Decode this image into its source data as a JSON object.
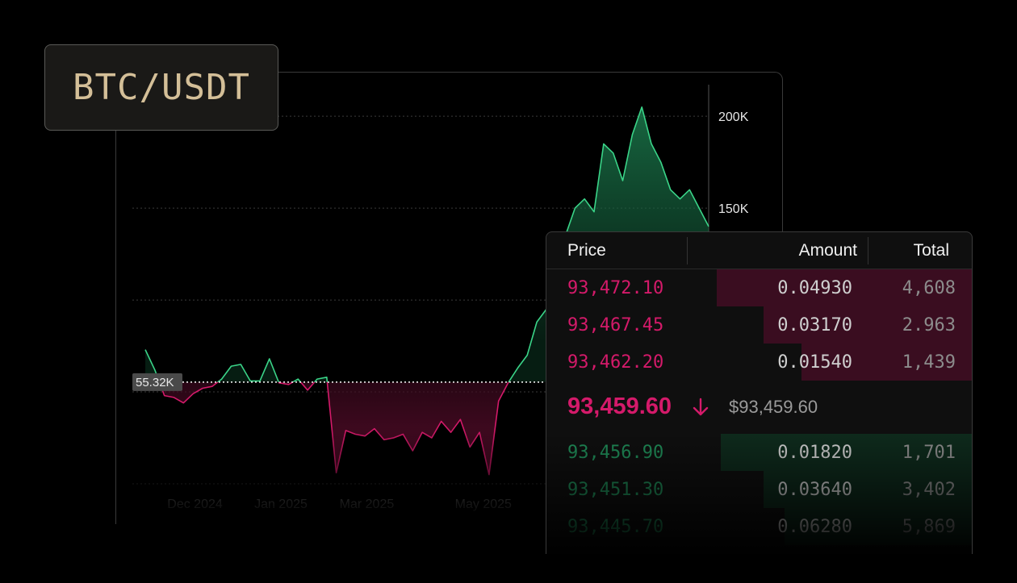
{
  "pair": {
    "label": "BTC/USDT"
  },
  "chart_data": {
    "type": "area",
    "baseline": 55320,
    "baseline_label": "55.32K",
    "ylim": [
      0,
      215000
    ],
    "y_ticks": [
      {
        "value": 200000,
        "label": "200K"
      },
      {
        "value": 150000,
        "label": "150K"
      }
    ],
    "x_ticks": [
      {
        "value": "2024-12-01",
        "label": "Dec 2024"
      },
      {
        "value": "2025-01-15",
        "label": "Jan 2025"
      },
      {
        "value": "2025-03-01",
        "label": "Mar 2025"
      },
      {
        "value": "2025-05-01",
        "label": "May 2025"
      }
    ],
    "colors": {
      "above": "#3ad488",
      "below": "#d41a6a"
    },
    "series": [
      {
        "x": [
          "2024-11-05",
          "2024-11-10",
          "2024-11-15",
          "2024-11-20",
          "2024-11-25",
          "2024-11-30",
          "2024-12-05",
          "2024-12-10",
          "2024-12-15",
          "2024-12-20",
          "2024-12-25",
          "2024-12-30",
          "2025-01-04",
          "2025-01-09",
          "2025-01-14",
          "2025-01-19",
          "2025-01-24",
          "2025-01-29",
          "2025-02-03",
          "2025-02-08",
          "2025-02-13",
          "2025-02-18",
          "2025-02-23",
          "2025-02-28",
          "2025-03-05",
          "2025-03-10",
          "2025-03-15",
          "2025-03-20",
          "2025-03-25",
          "2025-03-30",
          "2025-04-04",
          "2025-04-09",
          "2025-04-14",
          "2025-04-19",
          "2025-04-24",
          "2025-04-29",
          "2025-05-04",
          "2025-05-09",
          "2025-05-14",
          "2025-05-19",
          "2025-05-24",
          "2025-05-29",
          "2025-06-03",
          "2025-06-08",
          "2025-06-13",
          "2025-06-18",
          "2025-06-23",
          "2025-06-28",
          "2025-07-03",
          "2025-07-08",
          "2025-07-13",
          "2025-07-18",
          "2025-07-23",
          "2025-07-28",
          "2025-08-02",
          "2025-08-07",
          "2025-08-12",
          "2025-08-17",
          "2025-08-22",
          "2025-08-27"
        ],
        "y": [
          73000,
          62000,
          48000,
          47000,
          44000,
          49000,
          52000,
          53000,
          57000,
          64000,
          65000,
          56000,
          56000,
          68000,
          55000,
          54000,
          57000,
          51000,
          57000,
          58000,
          6000,
          29000,
          27000,
          26000,
          30000,
          24000,
          25000,
          27000,
          18000,
          28000,
          25000,
          34000,
          28000,
          35000,
          20000,
          28000,
          5000,
          45000,
          55000,
          63000,
          70000,
          88000,
          95000,
          110000,
          135000,
          150000,
          155000,
          148000,
          185000,
          180000,
          165000,
          190000,
          205000,
          185000,
          175000,
          160000,
          155000,
          160000,
          150000,
          140000
        ]
      }
    ]
  },
  "orderbook": {
    "headers": {
      "price": "Price",
      "amount": "Amount",
      "total": "Total"
    },
    "asks": [
      {
        "price": "93,472.10",
        "amount": "0.04930",
        "total": "4,608",
        "depth": 0.6
      },
      {
        "price": "93,467.45",
        "amount": "0.03170",
        "total": "2.963",
        "depth": 0.49
      },
      {
        "price": "93,462.20",
        "amount": "0.01540",
        "total": "1,439",
        "depth": 0.4
      }
    ],
    "mid": {
      "price": "93,459.60",
      "usd": "$93,459.60",
      "direction": "down"
    },
    "bids": [
      {
        "price": "93,456.90",
        "amount": "0.01820",
        "total": "1,701",
        "depth": 0.59
      },
      {
        "price": "93,451.30",
        "amount": "0.03640",
        "total": "3,402",
        "depth": 0.49
      },
      {
        "price": "93,445.70",
        "amount": "0.06280",
        "total": "5,869",
        "depth": 0.44
      }
    ]
  }
}
